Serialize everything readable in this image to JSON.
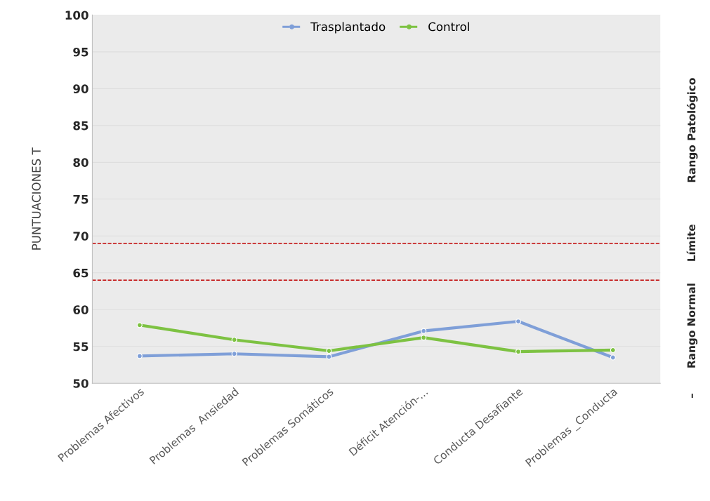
{
  "chart_data": {
    "type": "line",
    "ylabel": "PUNTUACIONES T",
    "categories": [
      "Problemas Afectivos",
      "Problemas  Ansiedad",
      "Problemas Somáticos",
      "Déficit Atención-...",
      "Conducta Desafiante",
      "Problemas _Conducta"
    ],
    "series": [
      {
        "name": "Trasplantado",
        "color": "#7f9fd8",
        "values": [
          53.7,
          54.0,
          53.6,
          57.1,
          58.4,
          53.5
        ]
      },
      {
        "name": "Control",
        "color": "#7dc242",
        "values": [
          57.9,
          55.9,
          54.4,
          56.2,
          54.3,
          54.5
        ]
      }
    ],
    "ylim": [
      50,
      100
    ],
    "yticks": [
      50,
      55,
      60,
      65,
      70,
      75,
      80,
      85,
      90,
      95,
      100
    ],
    "ref_lines": [
      {
        "axis": "y",
        "value": 69,
        "color": "#c00000",
        "line_style": "dashed"
      },
      {
        "axis": "y",
        "value": 64,
        "color": "#c00000",
        "line_style": "dashed"
      }
    ],
    "annotations": [
      "Rango Patológico",
      "Límite",
      "Rango Normal",
      "–"
    ],
    "grid": "y",
    "legend": "top",
    "marker": "circle",
    "line_style": "solid"
  }
}
